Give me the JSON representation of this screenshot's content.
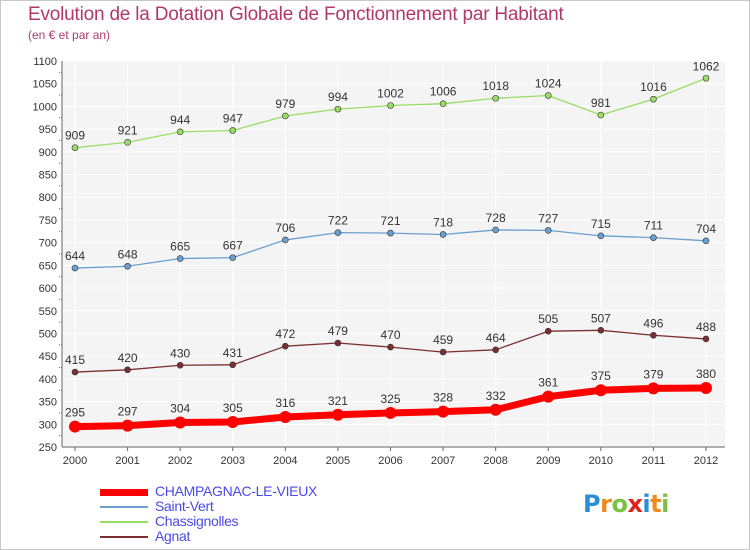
{
  "title": "Evolution de la Dotation Globale de Fonctionnement par Habitant",
  "subtitle": "(en € et par an)",
  "logo": {
    "letters": [
      "P",
      "r",
      "o",
      "x",
      "i",
      "t",
      "i"
    ],
    "colors": [
      "#2a8fd6",
      "#ef8a1d",
      "#7cc242",
      "#d9251c",
      "#2a8fd6",
      "#ef8a1d",
      "#7cc242"
    ]
  },
  "chart_data": {
    "type": "line",
    "x": [
      "2000",
      "2001",
      "2002",
      "2003",
      "2004",
      "2005",
      "2006",
      "2007",
      "2008",
      "2009",
      "2010",
      "2011",
      "2012"
    ],
    "ylim": [
      250,
      1100
    ],
    "yticks": [
      250,
      300,
      350,
      400,
      450,
      500,
      550,
      600,
      650,
      700,
      750,
      800,
      850,
      900,
      950,
      1000,
      1050,
      1100
    ],
    "grid": true,
    "legend_position": "bottom-left",
    "series": [
      {
        "name": "CHAMPAGNAC-LE-VIEUX",
        "color": "#ff0000",
        "values": [
          295,
          297,
          304,
          305,
          316,
          321,
          325,
          328,
          332,
          361,
          375,
          379,
          380
        ]
      },
      {
        "name": "Saint-Vert",
        "color": "#6b9fcf",
        "values": [
          644,
          648,
          665,
          667,
          706,
          722,
          721,
          718,
          728,
          727,
          715,
          711,
          704
        ]
      },
      {
        "name": "Chassignolles",
        "color": "#99dd66",
        "values": [
          909,
          921,
          944,
          947,
          979,
          994,
          1002,
          1006,
          1018,
          1024,
          981,
          1016,
          1062
        ]
      },
      {
        "name": "Agnat",
        "color": "#7a2f33",
        "values": [
          415,
          420,
          430,
          431,
          472,
          479,
          470,
          459,
          464,
          505,
          507,
          496,
          488
        ]
      }
    ]
  }
}
